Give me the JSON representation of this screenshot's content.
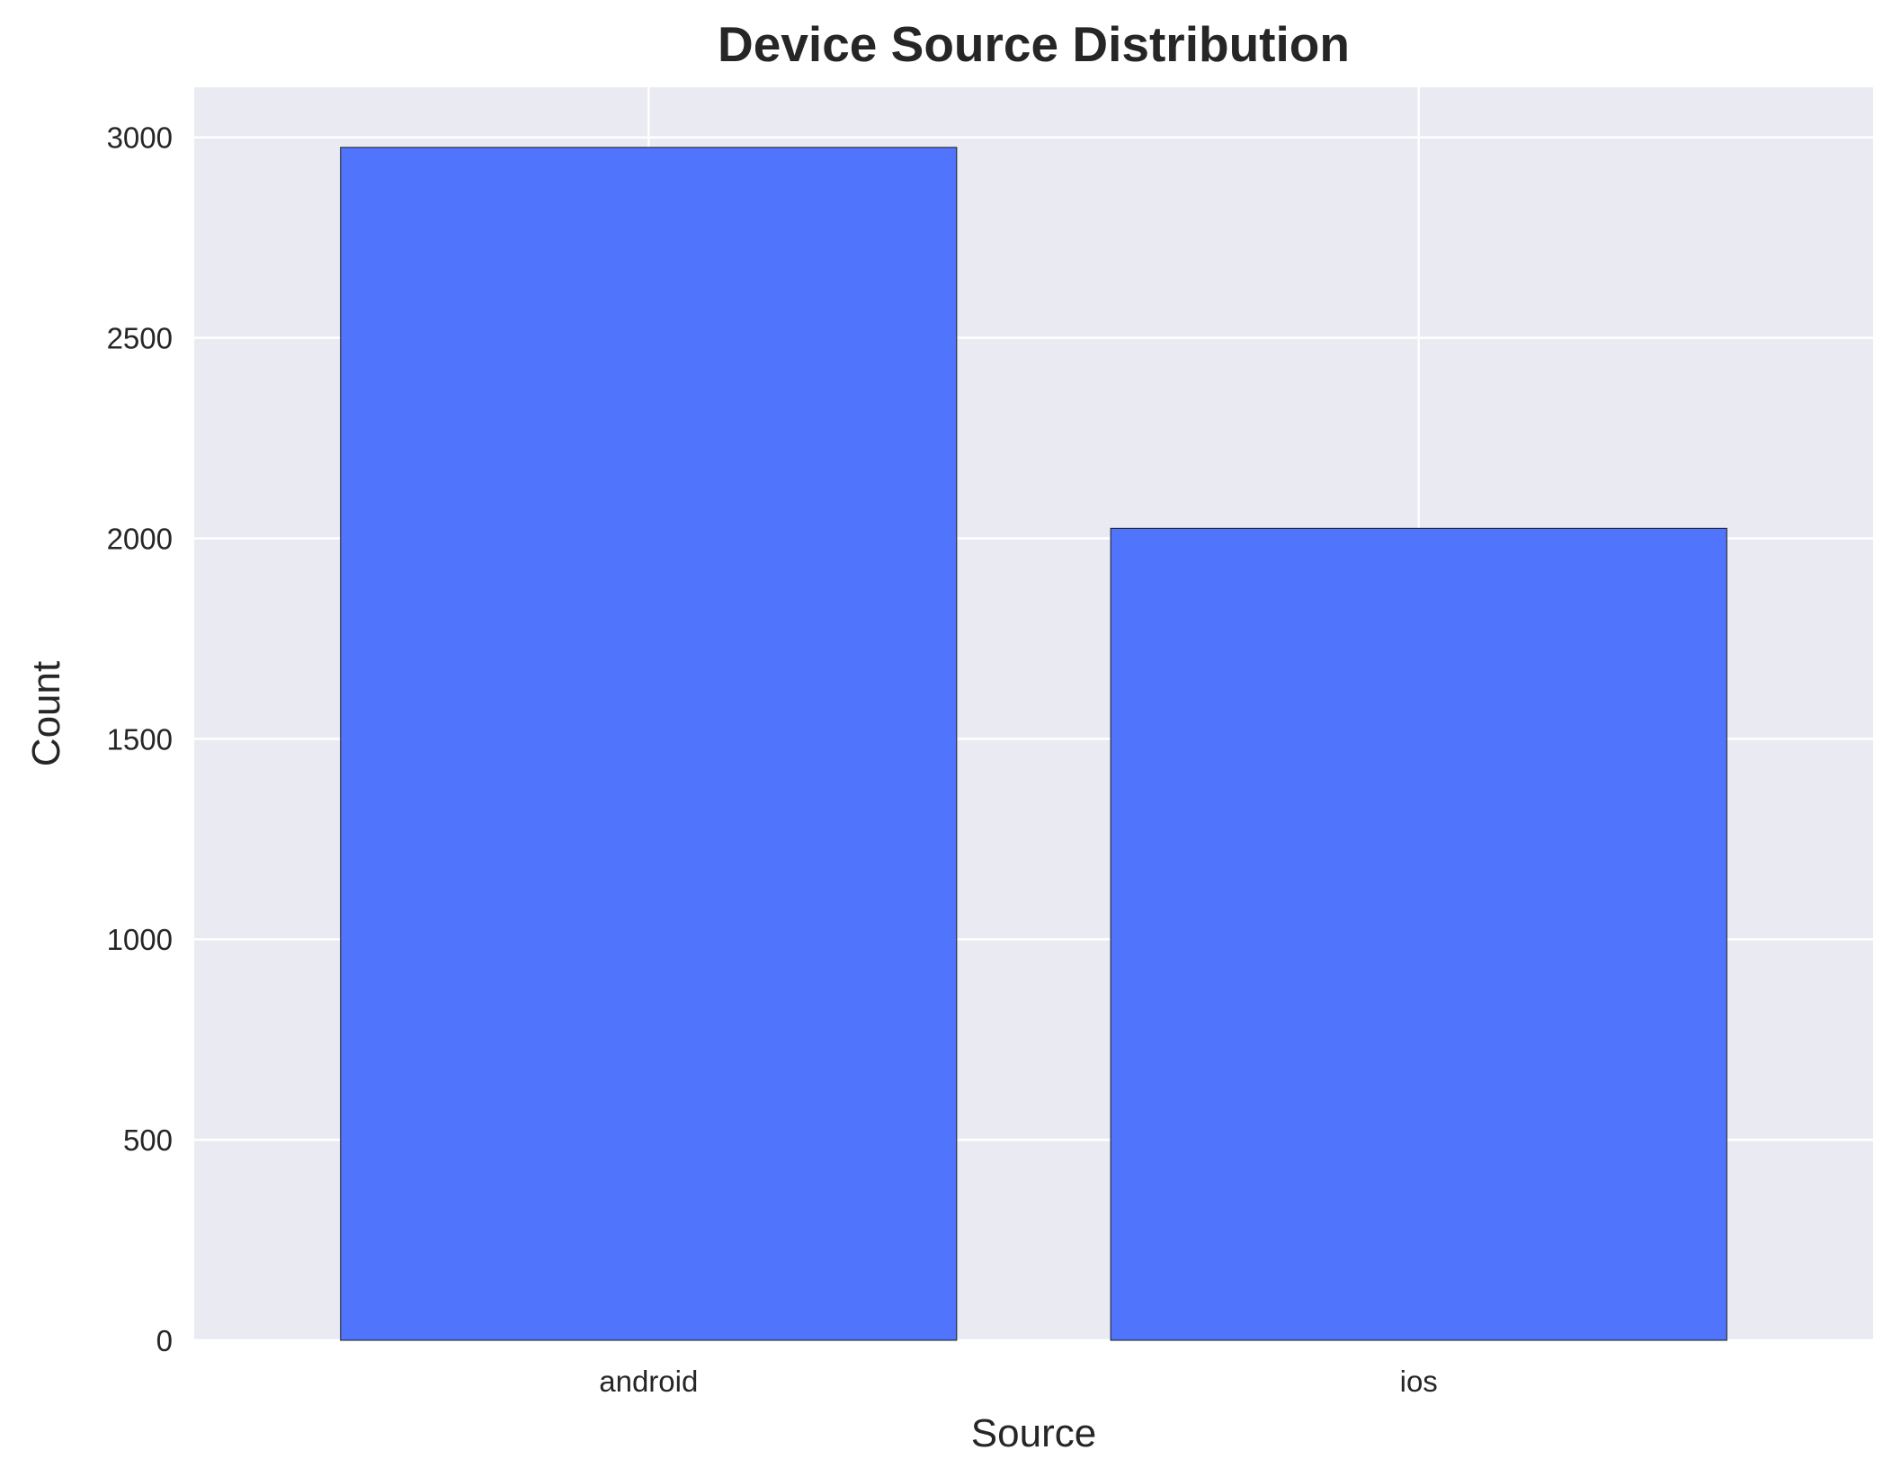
{
  "chart_data": {
    "type": "bar",
    "title": "Device Source Distribution",
    "xlabel": "Source",
    "ylabel": "Count",
    "categories": [
      "android",
      "ios"
    ],
    "values": [
      2975,
      2025
    ],
    "ylim": [
      0,
      3125
    ],
    "yticks": [
      0,
      500,
      1000,
      1500,
      2000,
      2500,
      3000
    ],
    "grid": true,
    "legend": "none",
    "colors": {
      "bar": "#4a6ffc",
      "bar_edge": "#1a1a1a",
      "plot_background": "#eaeaf2",
      "gridline": "#ffffff"
    }
  }
}
